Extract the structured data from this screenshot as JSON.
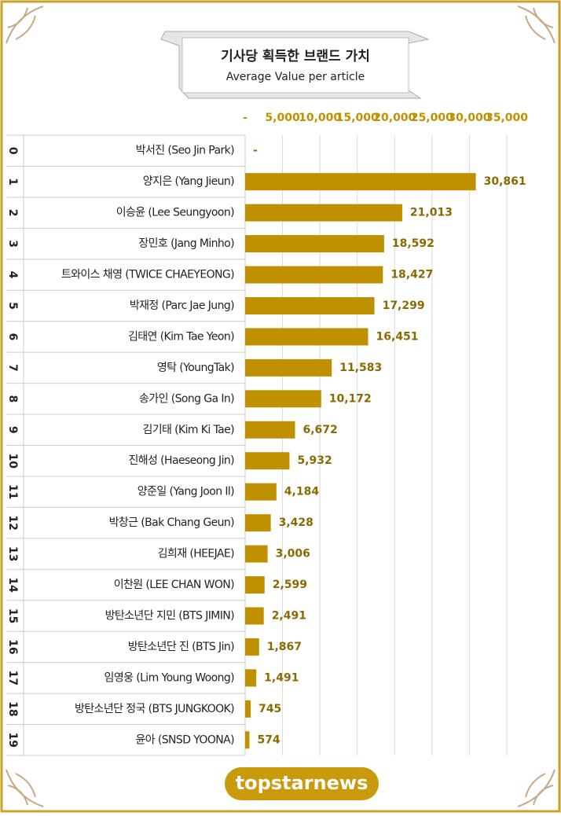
{
  "chart_data": {
    "type": "bar",
    "orientation": "horizontal",
    "title": "기사당 획득한 브랜드 가치",
    "subtitle": "Average Value per article",
    "row_numbers": [
      0,
      1,
      2,
      3,
      4,
      5,
      6,
      7,
      8,
      9,
      10,
      11,
      12,
      13,
      14,
      15,
      16,
      17,
      18,
      19
    ],
    "categories": [
      "박서진 (Seo Jin Park)",
      "양지은 (Yang Jieun)",
      "이승윤 (Lee Seungyoon)",
      "장민호 (Jang Minho)",
      "트와이스 채영 (TWICE CHAEYEONG)",
      "박재정 (Parc Jae Jung)",
      "김태연 (Kim Tae Yeon)",
      "영탁 (YoungTak)",
      "송가인 (Song Ga In)",
      "김기태 (Kim Ki Tae)",
      "진해성 (Haeseong Jin)",
      "양준일 (Yang Joon Il)",
      "박창근 (Bak Chang Geun)",
      "김희재 (HEEJAE)",
      "이찬원 (LEE CHAN WON)",
      "방탄소년단 지민 (BTS JIMIN)",
      "방탄소년단 진 (BTS Jin)",
      "임영웅 (Lim Young Woong)",
      "방탄소년단 정국 (BTS JUNGKOOK)",
      "윤아 (SNSD YOONA)"
    ],
    "values": [
      0,
      30861,
      21013,
      18592,
      18427,
      17299,
      16451,
      11583,
      10172,
      6672,
      5932,
      4184,
      3428,
      3006,
      2599,
      2491,
      1867,
      1491,
      745,
      574
    ],
    "value_labels": [
      "-",
      "30,861",
      "21,013",
      "18,592",
      "18,427",
      "17,299",
      "16,451",
      "11,583",
      "10,172",
      "6,672",
      "5,932",
      "4,184",
      "3,428",
      "3,006",
      "2,599",
      "2,491",
      "1,867",
      "1,491",
      "745",
      "574"
    ],
    "color": "#bf9000",
    "xlim": [
      0,
      35000
    ],
    "xticks": [
      {
        "value": 0,
        "label": "-"
      },
      {
        "value": 5000,
        "label": "5,000"
      },
      {
        "value": 10000,
        "label": "10,000"
      },
      {
        "value": 15000,
        "label": "15,000"
      },
      {
        "value": 20000,
        "label": "20,000"
      },
      {
        "value": 25000,
        "label": "25,000"
      },
      {
        "value": 30000,
        "label": "30,000"
      },
      {
        "value": 35000,
        "label": "35,000"
      }
    ],
    "grid": true,
    "footer": "topstarnews"
  }
}
